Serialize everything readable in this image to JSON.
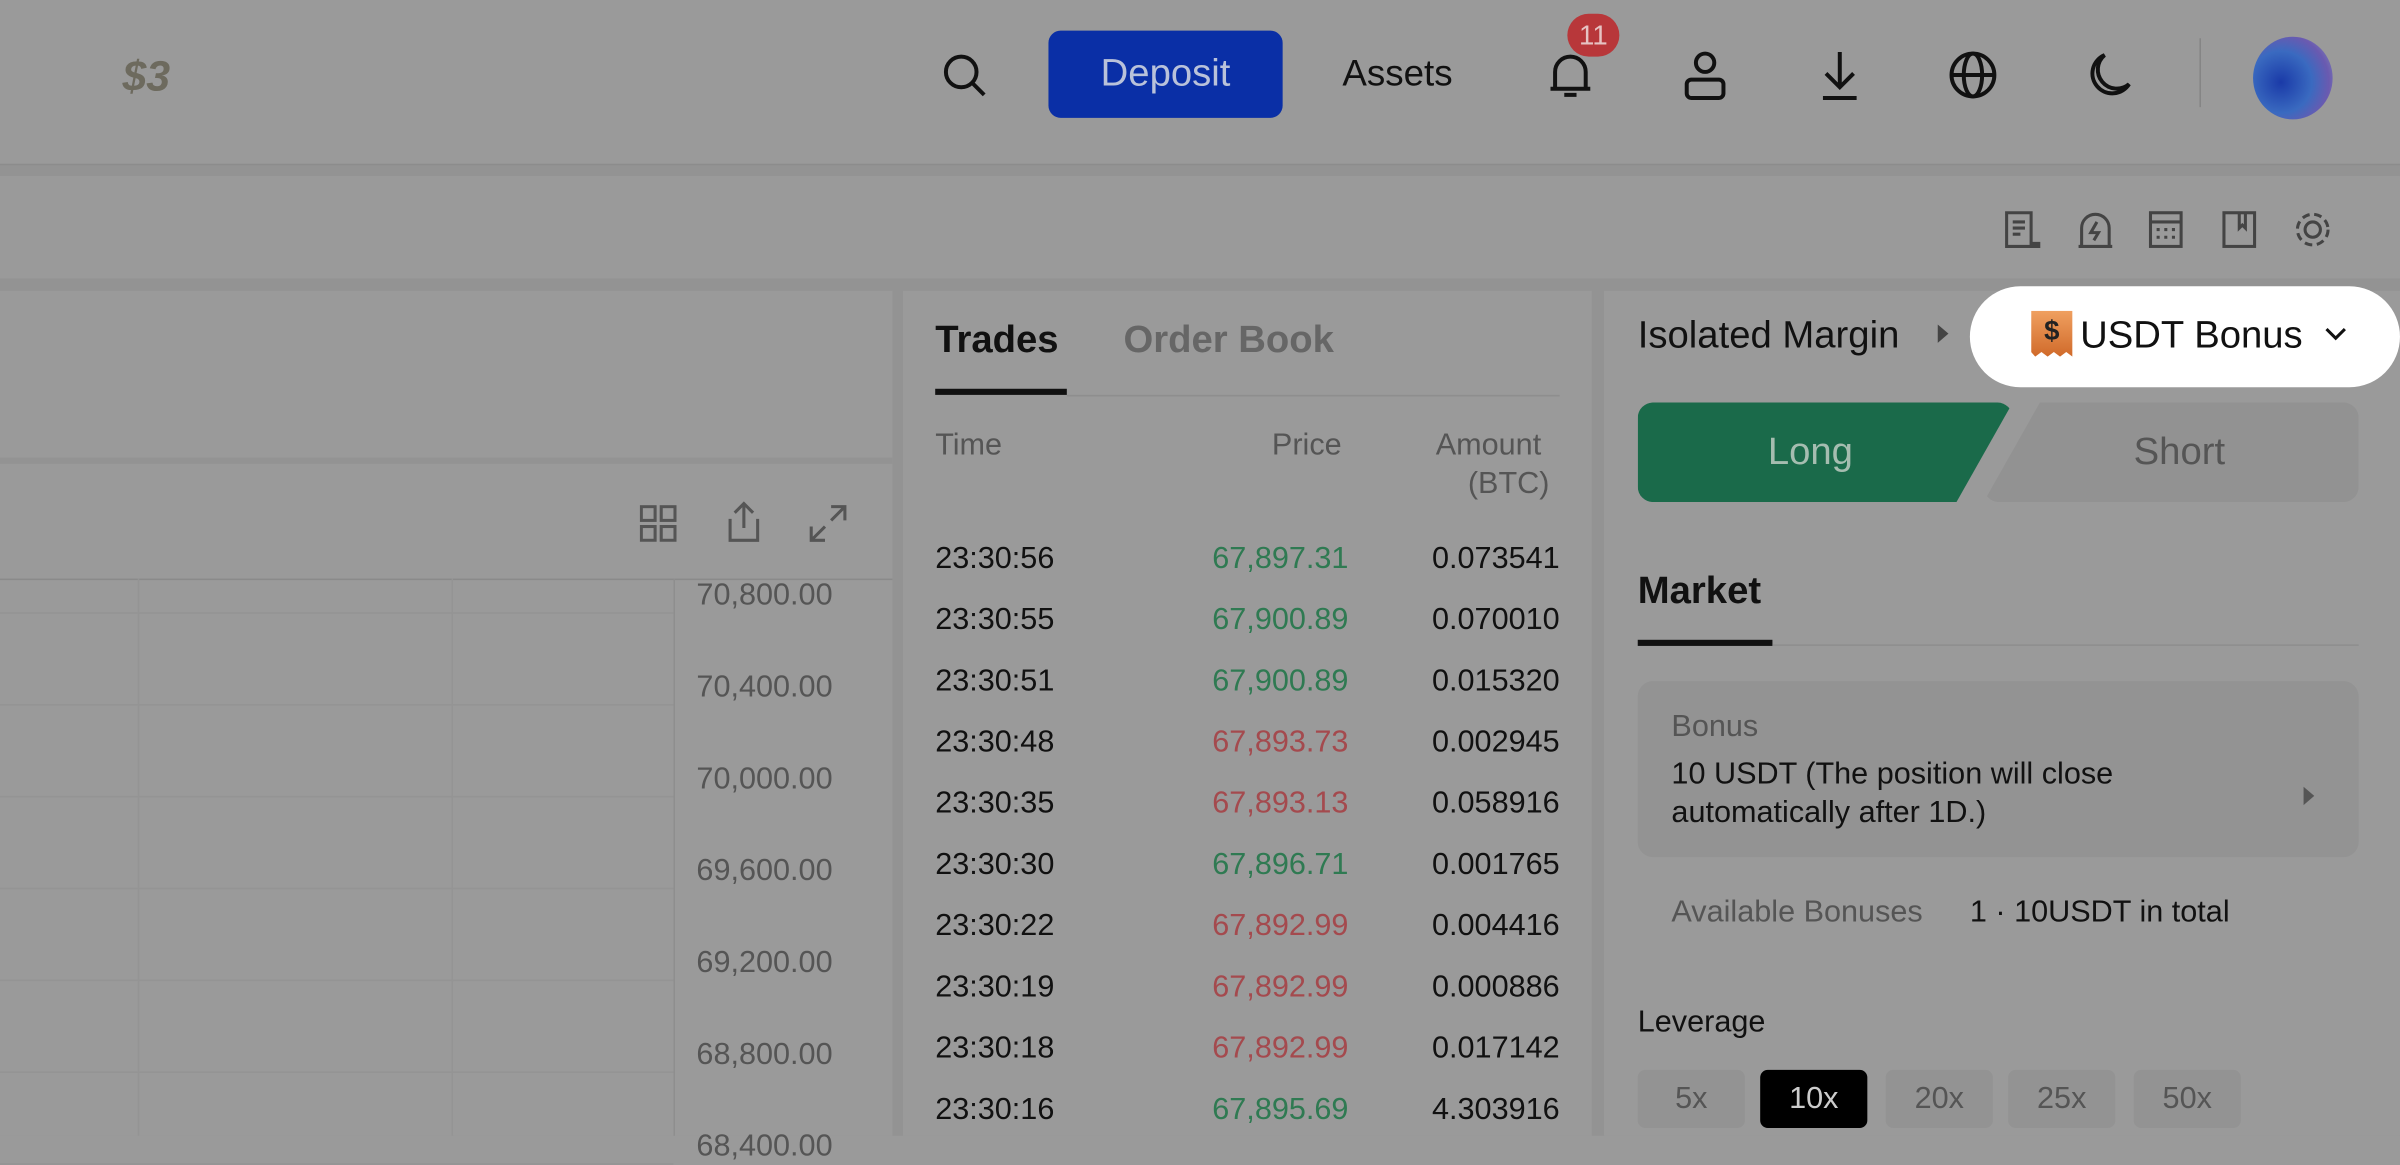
{
  "header": {
    "logo": "$3",
    "deposit_label": "Deposit",
    "assets_label": "Assets",
    "notification_count": "11",
    "icons": [
      "search-icon",
      "bell-icon",
      "user-icon",
      "download-icon",
      "globe-icon",
      "moon-icon",
      "avatar"
    ]
  },
  "toolbar_icons": [
    "orders-icon",
    "alert-icon",
    "calculator-icon",
    "guide-icon",
    "settings-icon"
  ],
  "chart": {
    "tool_icons": [
      "layout-grid-icon",
      "share-icon",
      "expand-icon"
    ],
    "price_axis": [
      "70,800.00",
      "70,400.00",
      "70,000.00",
      "69,600.00",
      "69,200.00",
      "68,800.00",
      "68,400.00"
    ]
  },
  "trades": {
    "tabs": [
      {
        "label": "Trades",
        "active": true
      },
      {
        "label": "Order Book",
        "active": false
      }
    ],
    "columns": {
      "time": "Time",
      "price": "Price",
      "amount": "Amount",
      "amount_unit": "(BTC)"
    },
    "rows": [
      {
        "time": "23:30:56",
        "price": "67,897.31",
        "amount": "0.073541",
        "side": "buy"
      },
      {
        "time": "23:30:55",
        "price": "67,900.89",
        "amount": "0.070010",
        "side": "buy"
      },
      {
        "time": "23:30:51",
        "price": "67,900.89",
        "amount": "0.015320",
        "side": "buy"
      },
      {
        "time": "23:30:48",
        "price": "67,893.73",
        "amount": "0.002945",
        "side": "sell"
      },
      {
        "time": "23:30:35",
        "price": "67,893.13",
        "amount": "0.058916",
        "side": "sell"
      },
      {
        "time": "23:30:30",
        "price": "67,896.71",
        "amount": "0.001765",
        "side": "buy"
      },
      {
        "time": "23:30:22",
        "price": "67,892.99",
        "amount": "0.004416",
        "side": "sell"
      },
      {
        "time": "23:30:19",
        "price": "67,892.99",
        "amount": "0.000886",
        "side": "sell"
      },
      {
        "time": "23:30:18",
        "price": "67,892.99",
        "amount": "0.017142",
        "side": "sell"
      },
      {
        "time": "23:30:16",
        "price": "67,895.69",
        "amount": "4.303916",
        "side": "buy"
      }
    ],
    "colors": {
      "buy": "#2f7a52",
      "sell": "#a44a4e"
    }
  },
  "order": {
    "margin_mode": "Isolated Margin",
    "bonus_selector": "USDT Bonus",
    "long_label": "Long",
    "short_label": "Short",
    "order_type": "Market",
    "bonus": {
      "label": "Bonus",
      "value_line1": "10 USDT (The position will close",
      "value_line2": "automatically after 1D.)"
    },
    "available_label": "Available Bonuses",
    "available_value": "1 · 10USDT in total",
    "leverage_label": "Leverage",
    "leverage_options": [
      "5x",
      "10x",
      "20x",
      "25x",
      "50x"
    ],
    "leverage_selected": "10x",
    "colors": {
      "long": "#1a6a4a",
      "deposit": "#0a2fa6"
    }
  }
}
